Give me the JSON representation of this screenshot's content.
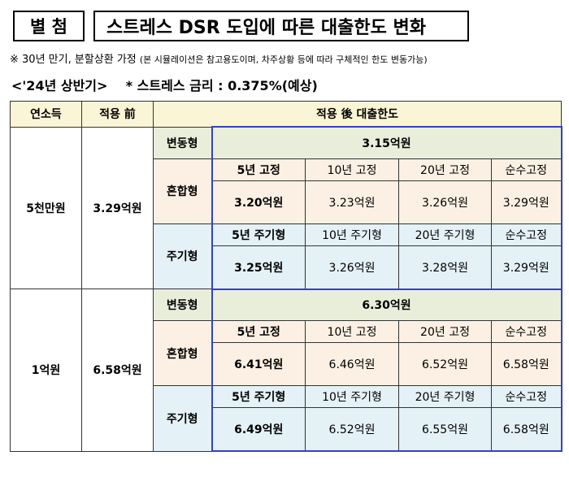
{
  "header": {
    "badge": "별 첨",
    "title": "스트레스 DSR 도입에 따른 대출한도 변화"
  },
  "note": {
    "main": "※ 30년 만기, 분할상환 가정",
    "sub": "(본 시뮬레이션은 참고용도이며, 차주상황 등에 따라 구체적인 한도 변동가능)"
  },
  "period": {
    "label": "<'24년 상반기>",
    "rate": "* 스트레스 금리 : 0.375%(예상)"
  },
  "table": {
    "headers": {
      "income": "연소득",
      "before": "적용 前",
      "after": "적용 後 대출한도"
    },
    "types": {
      "variable": "변동형",
      "mixed": "혼합형",
      "cyclical": "주기형"
    },
    "mixed_labels": [
      "5년 고정",
      "10년 고정",
      "20년 고정",
      "순수고정"
    ],
    "cyclical_labels": [
      "5년 주기형",
      "10년 주기형",
      "20년 주기형",
      "순수고정"
    ],
    "rows": [
      {
        "income": "5천만원",
        "before": "3.29억원",
        "variable": "3.15억원",
        "mixed": [
          "3.20억원",
          "3.23억원",
          "3.26억원",
          "3.29억원"
        ],
        "cyclical": [
          "3.25억원",
          "3.26억원",
          "3.28억원",
          "3.29억원"
        ]
      },
      {
        "income": "1억원",
        "before": "6.58억원",
        "variable": "6.30억원",
        "mixed": [
          "6.41억원",
          "6.46억원",
          "6.52억원",
          "6.58억원"
        ],
        "cyclical": [
          "6.49억원",
          "6.52억원",
          "6.55억원",
          "6.58억원"
        ]
      }
    ]
  }
}
